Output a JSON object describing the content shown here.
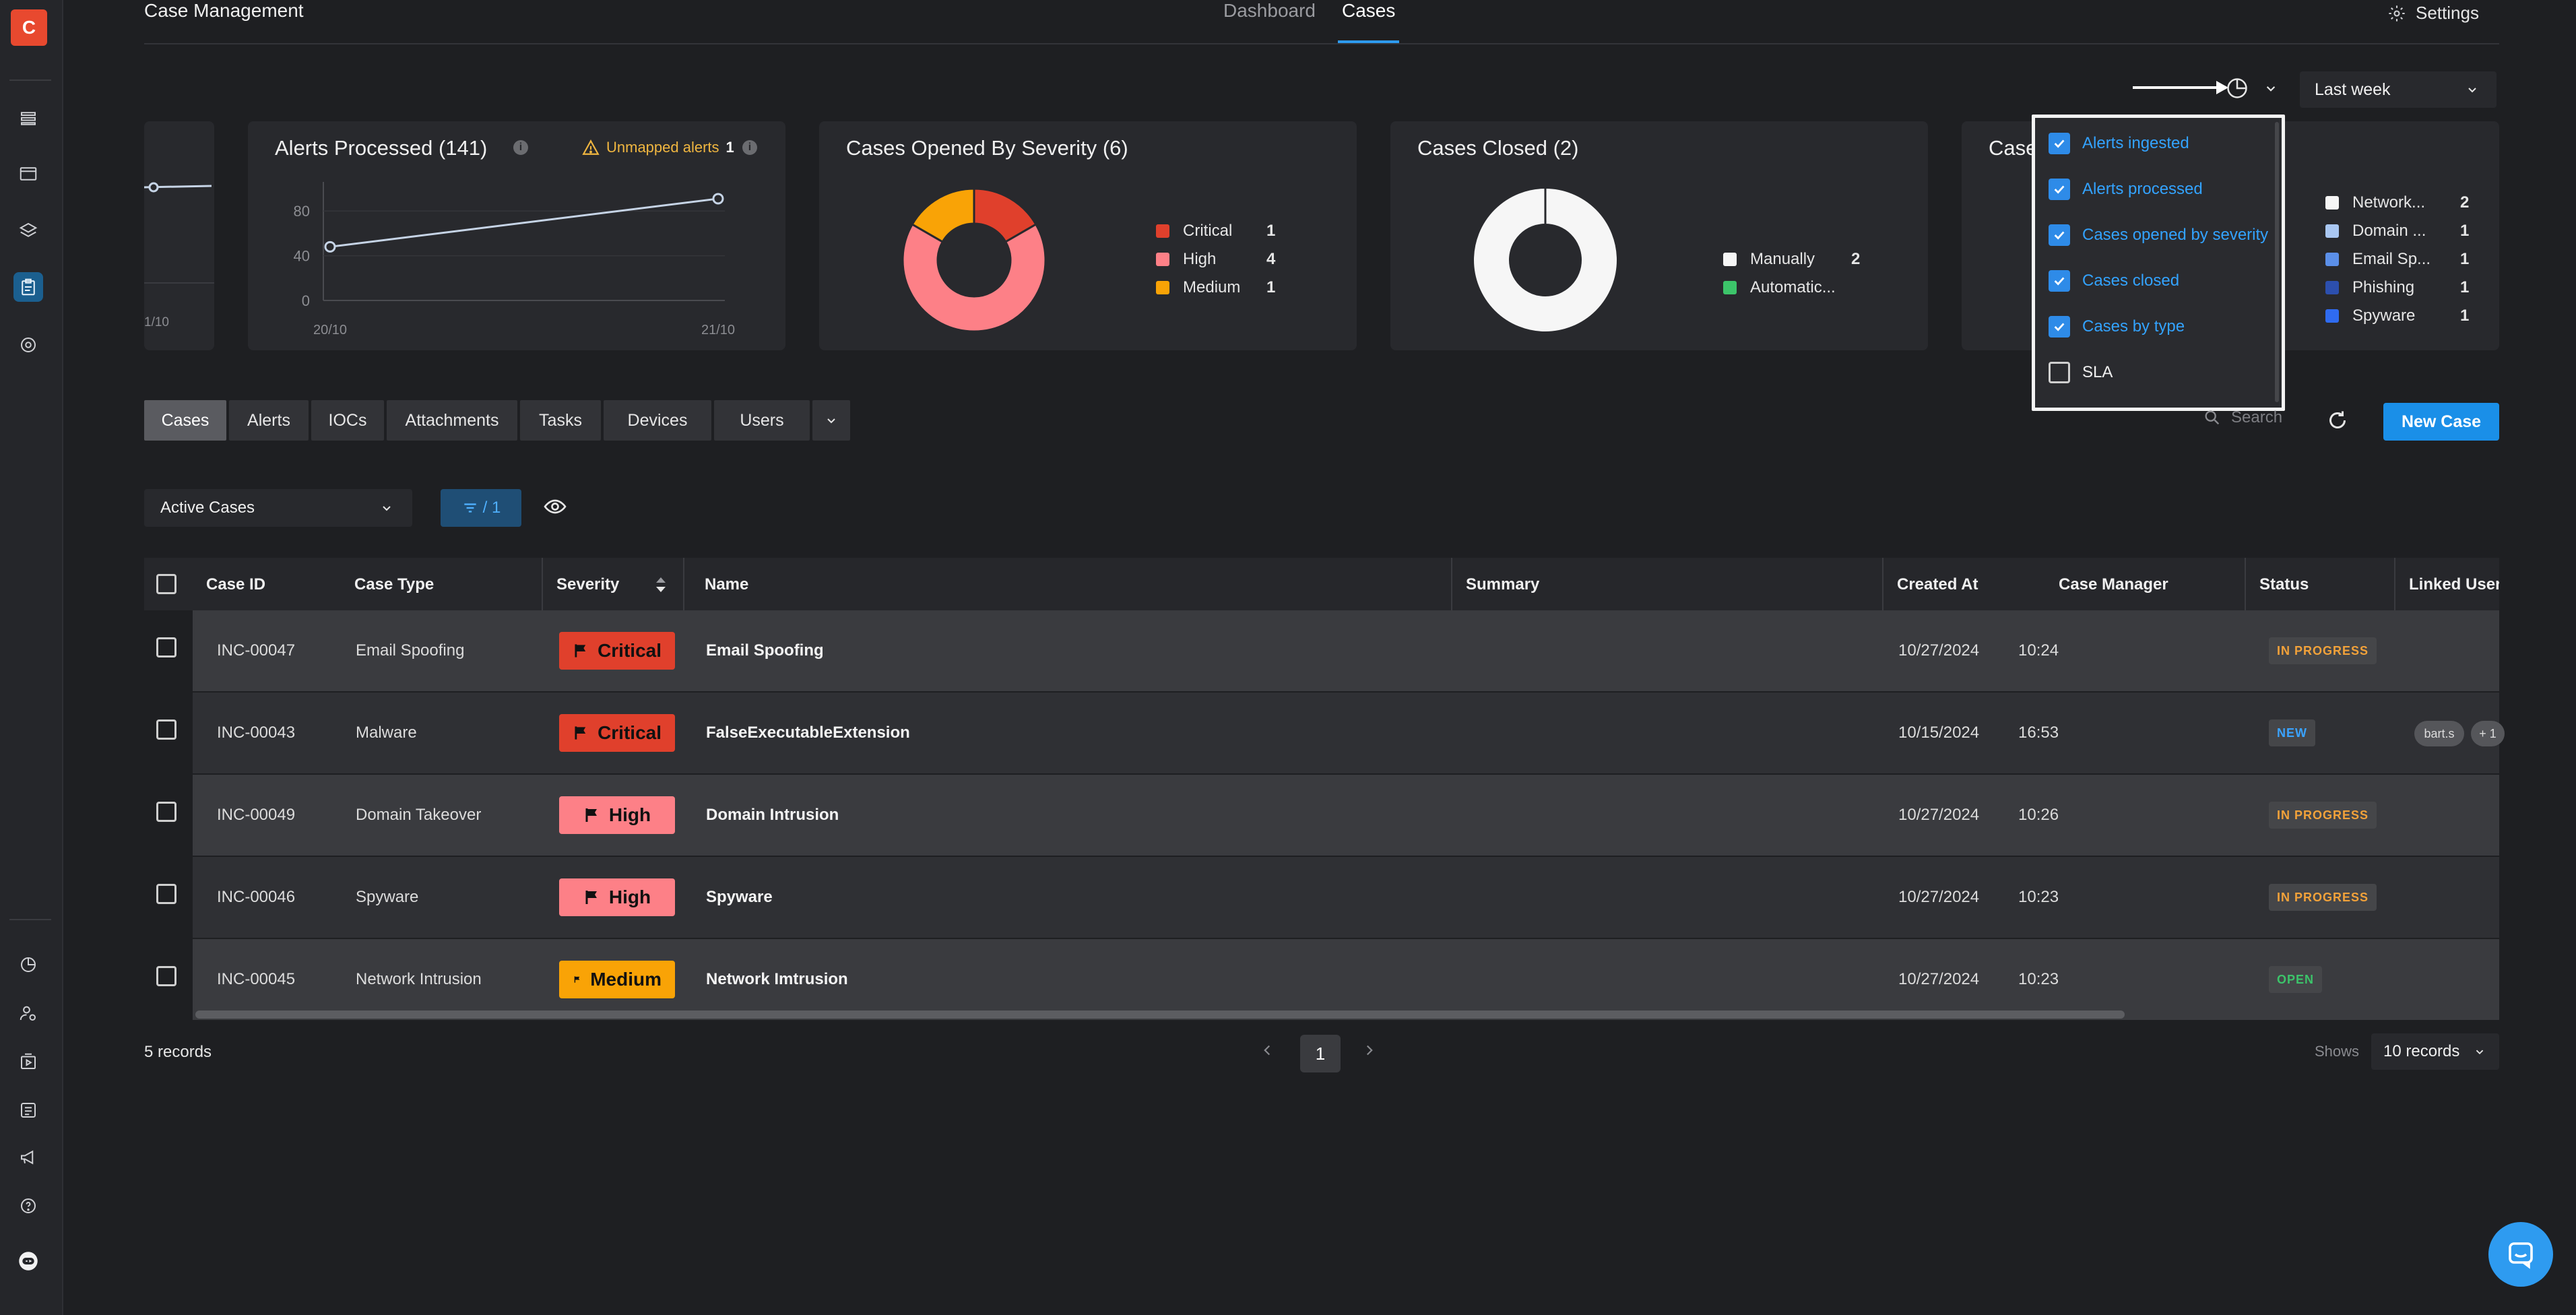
{
  "colors": {
    "accent": "#2e9bf0",
    "critical": "#e0402c",
    "high": "#fd8087",
    "medium": "#f9a306"
  },
  "sidebar": {
    "logo_letter": "C",
    "icons": [
      "grid-icon",
      "window-icon",
      "layers-icon",
      "case-clipboard-icon",
      "settings-cog-icon",
      "pie-chart-icon",
      "user-gear-icon",
      "playbook-icon",
      "database-icon",
      "megaphone-icon",
      "help-icon",
      "robot-icon"
    ]
  },
  "header": {
    "title": "Case Management",
    "tabs": [
      {
        "label": "Dashboard"
      },
      {
        "label": "Cases"
      }
    ],
    "settings_label": "Settings"
  },
  "controls": {
    "time_range": "Last week"
  },
  "cards": {
    "alerts_ingested_partial": {
      "tick_label": "1/10"
    },
    "alerts_processed": {
      "title": "Alerts Processed",
      "count": "(141)",
      "unmapped_label": "Unmapped alerts",
      "unmapped_count": "1"
    },
    "cases_opened": {
      "title": "Cases Opened By Severity",
      "count": "(6)",
      "legend": [
        {
          "label": "Critical",
          "value": "1",
          "color": "#e0402c"
        },
        {
          "label": "High",
          "value": "4",
          "color": "#fd8087"
        },
        {
          "label": "Medium",
          "value": "1",
          "color": "#f9a306"
        }
      ]
    },
    "cases_closed": {
      "title": "Cases Closed",
      "count": "(2)",
      "legend": [
        {
          "label": "Manually",
          "value": "2",
          "color": "#f6f6f6"
        },
        {
          "label": "Automatic...",
          "value": "",
          "color": "#3cc46a"
        }
      ]
    },
    "cases_by_type": {
      "title_partial": "Case",
      "legend": [
        {
          "label": "Network...",
          "value": "2",
          "color": "#f6f6f6"
        },
        {
          "label": "Domain ...",
          "value": "1",
          "color": "#a9c7f2"
        },
        {
          "label": "Email Sp...",
          "value": "1",
          "color": "#5b8fe8"
        },
        {
          "label": "Phishing",
          "value": "1",
          "color": "#2c4fae"
        },
        {
          "label": "Spyware",
          "value": "1",
          "color": "#2f6bf0"
        }
      ]
    }
  },
  "chart_data": [
    {
      "type": "line",
      "title": "Alerts Processed (141)",
      "x": [
        "20/10",
        "21/10"
      ],
      "series": [
        {
          "values": [
            48,
            91
          ]
        }
      ],
      "yticks": [
        0,
        40,
        80
      ],
      "ylim": [
        0,
        100
      ],
      "grid": true
    },
    {
      "type": "pie",
      "title": "Cases Opened By Severity (6)",
      "categories": [
        "Critical",
        "High",
        "Medium"
      ],
      "values": [
        1,
        4,
        1
      ]
    },
    {
      "type": "pie",
      "title": "Cases Closed (2)",
      "categories": [
        "Manually",
        "Automatic..."
      ],
      "values": [
        2,
        0
      ]
    }
  ],
  "widget_menu": {
    "items": [
      {
        "label": "Alerts ingested",
        "checked": true
      },
      {
        "label": "Alerts processed",
        "checked": true
      },
      {
        "label": "Cases opened by severity",
        "checked": true
      },
      {
        "label": "Cases closed",
        "checked": true
      },
      {
        "label": "Cases by type",
        "checked": true
      },
      {
        "label": "SLA",
        "checked": false
      }
    ]
  },
  "tabs": [
    "Cases",
    "Alerts",
    "IOCs",
    "Attachments",
    "Tasks",
    "Devices",
    "Users"
  ],
  "search": {
    "placeholder": "Search"
  },
  "new_case_label": "New Case",
  "filter": {
    "view": "Active Cases",
    "filter_count": "/ 1"
  },
  "table": {
    "columns": [
      "Case ID",
      "Case Type",
      "Severity",
      "Name",
      "Summary",
      "Created At",
      "Case Manager",
      "Status",
      "Linked Users"
    ],
    "rows": [
      {
        "id": "INC-00047",
        "type": "Email Spoofing",
        "severity": "Critical",
        "name": "Email Spoofing",
        "date": "10/27/2024",
        "time": "10:24",
        "status": "IN PROGRESS",
        "users": []
      },
      {
        "id": "INC-00043",
        "type": "Malware",
        "severity": "Critical",
        "name": "FalseExecutableExtension",
        "date": "10/15/2024",
        "time": "16:53",
        "status": "NEW",
        "users": [
          "bart.s",
          "+ 1"
        ]
      },
      {
        "id": "INC-00049",
        "type": "Domain Takeover",
        "severity": "High",
        "name": "Domain Intrusion",
        "date": "10/27/2024",
        "time": "10:26",
        "status": "IN PROGRESS",
        "users": []
      },
      {
        "id": "INC-00046",
        "type": "Spyware",
        "severity": "High",
        "name": "Spyware",
        "date": "10/27/2024",
        "time": "10:23",
        "status": "IN PROGRESS",
        "users": []
      },
      {
        "id": "INC-00045",
        "type": "Network Intrusion",
        "severity": "Medium",
        "name": "Network Imtrusion",
        "date": "10/27/2024",
        "time": "10:23",
        "status": "OPEN",
        "users": []
      }
    ]
  },
  "footer": {
    "records": "5 records",
    "page": "1",
    "shows_label": "Shows",
    "page_size": "10 records"
  }
}
